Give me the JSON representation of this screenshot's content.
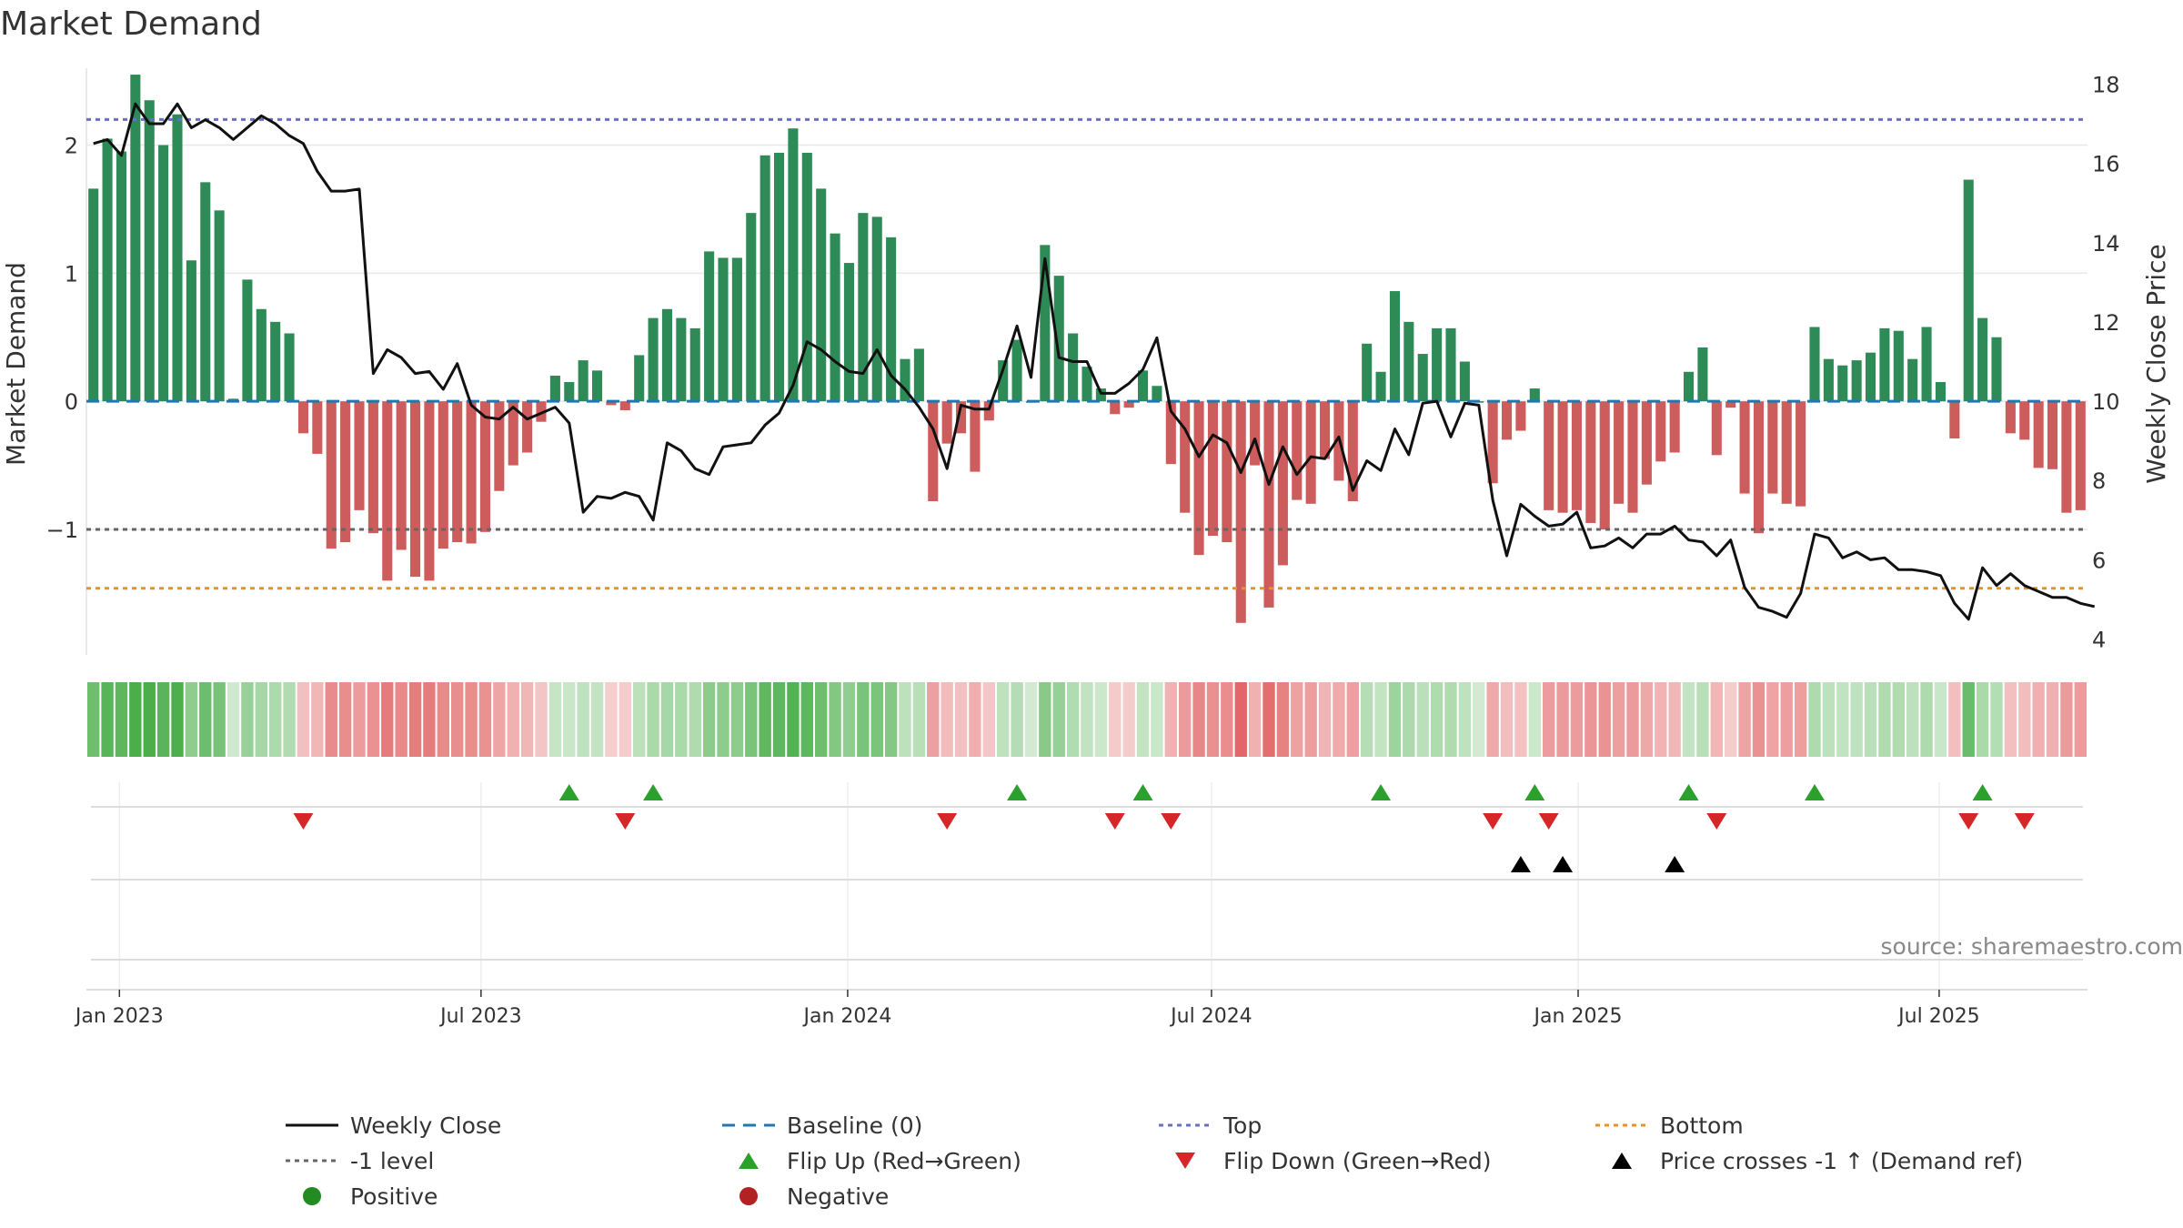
{
  "chart_data": {
    "type": "bar+line",
    "title": "Market Demand",
    "ylabel_left": "Market Demand",
    "ylabel_right": "Weekly Close Price",
    "left_axis": {
      "ylim": [
        -1.98,
        2.6
      ],
      "ticks": [
        2,
        1,
        0,
        -1
      ],
      "tick_labels": [
        "2",
        "1",
        "0",
        "−1"
      ]
    },
    "right_axis": {
      "ylim": [
        3.6,
        18.4
      ],
      "ticks": [
        18,
        16,
        14,
        12,
        10,
        8,
        6,
        4
      ],
      "tick_labels": [
        "18",
        "16",
        "14",
        "12",
        "10",
        "8",
        "6",
        "4"
      ]
    },
    "reference_lines": {
      "top": 2.2,
      "minus_one": -1,
      "bottom": -1.46,
      "baseline": 0
    },
    "x_axis": {
      "start_date": "2022-12-19",
      "weeks": 143,
      "ticks": [
        {
          "label": "Jan 2023",
          "week": 1.86
        },
        {
          "label": "Jul 2023",
          "week": 27.7
        },
        {
          "label": "Jan 2024",
          "week": 53.9
        },
        {
          "label": "Jul 2024",
          "week": 79.9
        },
        {
          "label": "Jan 2025",
          "week": 106.1
        },
        {
          "label": "Jul 2025",
          "week": 131.9
        }
      ]
    },
    "series": [
      {
        "name": "Market Demand",
        "kind": "bar",
        "values": [
          1.66,
          2.05,
          1.95,
          2.55,
          2.35,
          2.0,
          2.24,
          1.1,
          1.71,
          1.49,
          0.02,
          0.95,
          0.72,
          0.62,
          0.53,
          -0.25,
          -0.41,
          -1.15,
          -1.1,
          -0.85,
          -1.03,
          -1.4,
          -1.16,
          -1.37,
          -1.4,
          -1.15,
          -1.1,
          -1.11,
          -1.02,
          -0.7,
          -0.5,
          -0.4,
          -0.16,
          0.2,
          0.15,
          0.32,
          0.24,
          -0.03,
          -0.07,
          0.36,
          0.65,
          0.72,
          0.65,
          0.57,
          1.17,
          1.12,
          1.12,
          1.47,
          1.92,
          1.94,
          2.13,
          1.94,
          1.66,
          1.31,
          1.08,
          1.47,
          1.44,
          1.28,
          0.33,
          0.41,
          -0.78,
          -0.33,
          -0.25,
          -0.55,
          -0.15,
          0.32,
          0.48,
          0.0,
          1.22,
          0.98,
          0.53,
          0.27,
          0.1,
          -0.1,
          -0.05,
          0.24,
          0.12,
          -0.49,
          -0.87,
          -1.2,
          -1.05,
          -1.1,
          -1.73,
          -0.5,
          -1.61,
          -1.28,
          -0.77,
          -0.8,
          -0.45,
          -0.62,
          -0.78,
          0.45,
          0.23,
          0.86,
          0.62,
          0.37,
          0.57,
          0.57,
          0.31,
          0.0,
          -0.64,
          -0.3,
          -0.23,
          0.1,
          -0.85,
          -0.87,
          -0.85,
          -0.95,
          -1.0,
          -0.8,
          -0.87,
          -0.65,
          -0.47,
          -0.4,
          0.23,
          0.42,
          -0.42,
          -0.05,
          -0.72,
          -1.03,
          -0.72,
          -0.8,
          -0.82,
          0.58,
          0.33,
          0.28,
          0.32,
          0.38,
          0.57,
          0.55,
          0.33,
          0.58,
          0.15,
          -0.29,
          1.73,
          0.65,
          0.5,
          -0.25,
          -0.3,
          -0.52,
          -0.53,
          -0.87,
          -0.85
        ]
      },
      {
        "name": "Weekly Close",
        "kind": "line",
        "values": [
          16.5,
          16.6,
          16.2,
          17.5,
          17.0,
          17.0,
          17.5,
          16.9,
          17.1,
          16.9,
          16.6,
          16.9,
          17.2,
          17.0,
          16.7,
          16.5,
          15.8,
          15.3,
          15.3,
          15.35,
          10.7,
          11.3,
          11.1,
          10.7,
          10.75,
          10.3,
          10.95,
          9.9,
          9.6,
          9.55,
          9.85,
          9.55,
          9.7,
          9.85,
          9.45,
          7.2,
          7.6,
          7.55,
          7.7,
          7.6,
          7.0,
          8.95,
          8.75,
          8.3,
          8.15,
          8.85,
          8.9,
          8.95,
          9.4,
          9.7,
          10.4,
          11.5,
          11.3,
          11.0,
          10.75,
          10.7,
          11.3,
          10.65,
          10.3,
          9.85,
          9.3,
          8.3,
          9.9,
          9.8,
          9.8,
          10.8,
          11.9,
          10.6,
          13.6,
          11.1,
          11.0,
          11.0,
          10.2,
          10.2,
          10.45,
          10.8,
          11.6,
          9.75,
          9.3,
          8.6,
          9.15,
          8.95,
          8.2,
          9.05,
          7.9,
          8.85,
          8.15,
          8.6,
          8.55,
          9.1,
          7.75,
          8.5,
          8.25,
          9.3,
          8.65,
          9.95,
          10.0,
          9.1,
          9.95,
          9.9,
          7.5,
          6.1,
          7.4,
          7.1,
          6.85,
          6.9,
          7.2,
          6.3,
          6.35,
          6.55,
          6.3,
          6.65,
          6.65,
          6.85,
          6.5,
          6.45,
          6.1,
          6.5,
          5.3,
          4.8,
          4.7,
          4.55,
          5.15,
          6.65,
          6.55,
          6.05,
          6.2,
          6.0,
          6.05,
          5.75,
          5.75,
          5.7,
          5.6,
          4.9,
          4.5,
          5.8,
          5.35,
          5.65,
          5.35,
          5.2,
          5.05,
          5.05,
          4.9,
          4.82
        ]
      }
    ],
    "heat_strip": {
      "positive_color": "#2ca02c",
      "negative_color": "#d62728",
      "basis": "Market Demand (per week)"
    },
    "events": {
      "flip_up_weeks": [
        34,
        40,
        66,
        75,
        92,
        103,
        114,
        123,
        135
      ],
      "flip_down_weeks": [
        15,
        38,
        61,
        73,
        77,
        100,
        104,
        116,
        134,
        138
      ],
      "price_cross_weeks": [
        102,
        105,
        113
      ]
    },
    "legend": [
      {
        "label": "Weekly Close",
        "marker": "line-solid",
        "color": "#111111"
      },
      {
        "label": "Baseline (0)",
        "marker": "line-dashed",
        "color": "#1f77b4"
      },
      {
        "label": "Top",
        "marker": "line-dotted",
        "color": "#6a6fc0"
      },
      {
        "label": "Bottom",
        "marker": "line-dotted",
        "color": "#e8902a"
      },
      {
        "label": "-1 level",
        "marker": "line-dotted",
        "color": "#666666"
      },
      {
        "label": "Flip Up (Red→Green)",
        "marker": "triangle-up",
        "color": "#2ca02c"
      },
      {
        "label": "Flip Down (Green→Red)",
        "marker": "triangle-down",
        "color": "#d62728"
      },
      {
        "label": "Price crosses -1 ↑ (Demand ref)",
        "marker": "triangle-up",
        "color": "#000000"
      },
      {
        "label": "Positive",
        "marker": "circle",
        "color": "#228b22"
      },
      {
        "label": "Negative",
        "marker": "circle",
        "color": "#b22222"
      }
    ],
    "colors": {
      "bar_positive": "#2e8b57",
      "bar_negative": "#cd5c5c",
      "price_line": "#111111",
      "grid": "#e8e8e8"
    }
  },
  "source_note": "source: sharemaestro.com"
}
